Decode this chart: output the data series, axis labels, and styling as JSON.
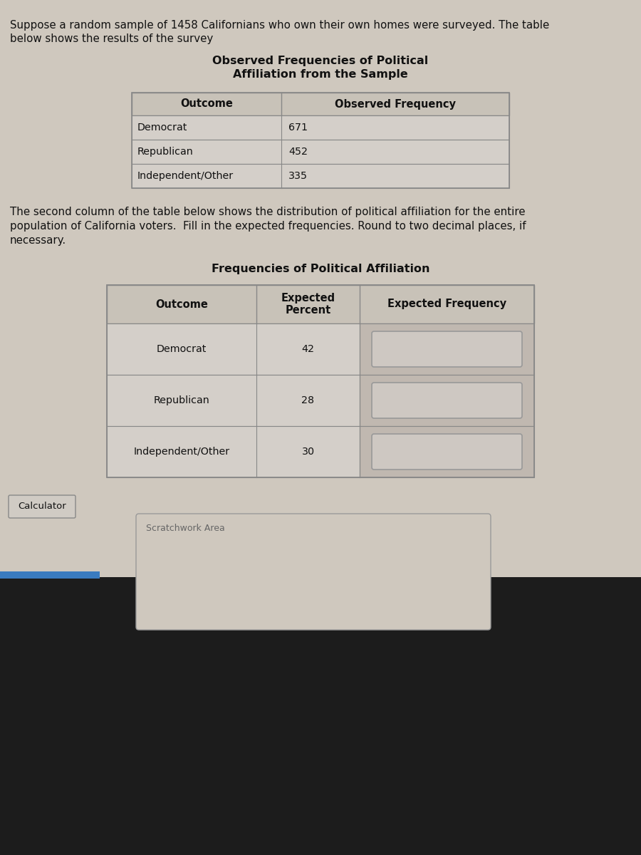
{
  "intro_text_line1": "Suppose a random sample of 1458 Californians who own their own homes were surveyed. The table",
  "intro_text_line2": "below shows the results of the survey",
  "table1_title_line1": "Observed Frequencies of Political",
  "table1_title_line2": "Affiliation from the Sample",
  "table1_col1_header": "Outcome",
  "table1_col2_header": "Observed Frequency",
  "table1_rows": [
    [
      "Democrat",
      "671"
    ],
    [
      "Republican",
      "452"
    ],
    [
      "Independent/Other",
      "335"
    ]
  ],
  "middle_text_line1": "The second column of the table below shows the distribution of political affiliation for the entire",
  "middle_text_line2": "population of California voters.  Fill in the expected frequencies. Round to two decimal places, if",
  "middle_text_line3": "necessary.",
  "table2_title": "Frequencies of Political Affiliation",
  "table2_col1_header": "Outcome",
  "table2_col2_header_line1": "Expected",
  "table2_col2_header_line2": "Percent",
  "table2_col3_header": "Expected Frequency",
  "table2_rows": [
    [
      "Democrat",
      "42"
    ],
    [
      "Republican",
      "28"
    ],
    [
      "Independent/Other",
      "30"
    ]
  ],
  "calculator_label": "Calculator",
  "scratchwork_label": "Scratchwork Area",
  "bg_light": "#cfc8be",
  "bg_dark": "#1c1c1c",
  "table_header_bg": "#c8c2b8",
  "table_cell_bg": "#d4cfc9",
  "table2_col3_bg": "#c0b8b0",
  "input_box_bg": "#cac4bc",
  "input_box_border": "#a0a0a0",
  "border_color": "#888888",
  "text_color": "#111111",
  "scratchwork_bg": "#cfc8be",
  "scratchwork_border": "#999999",
  "blue_bar_color": "#3a7bbf"
}
